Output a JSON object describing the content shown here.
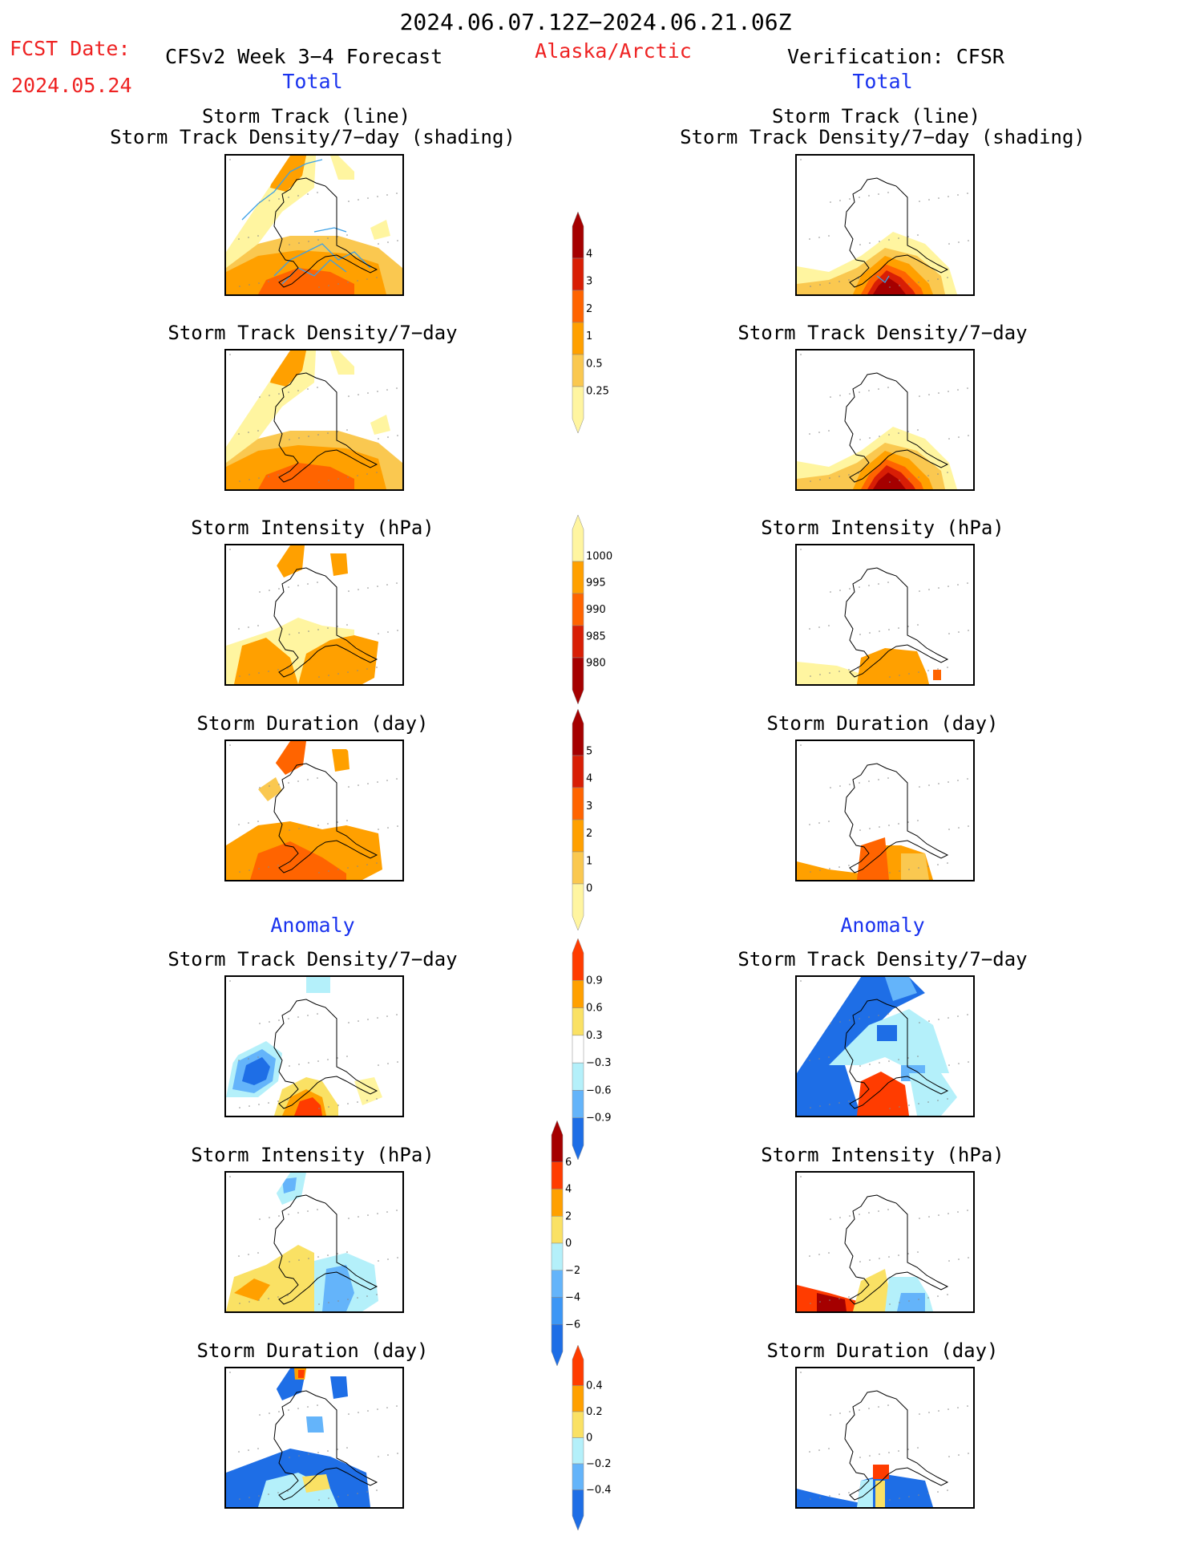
{
  "header": {
    "period": "2024.06.07.12Z−2024.06.21.06Z",
    "fcst_label": "FCST Date:",
    "fcst_date": "2024.05.24",
    "model": "CFSv2 Week 3−4 Forecast",
    "region": "Alaska/Arctic",
    "verification": "Verification: CFSR"
  },
  "sections": {
    "total": "Total",
    "anomaly": "Anomaly"
  },
  "panel_titles": {
    "track_line": "Storm Track (line)",
    "track_density_shading": "Storm Track Density/7−day (shading)",
    "track_density": "Storm Track Density/7−day",
    "intensity": "Storm Intensity (hPa)",
    "duration": "Storm Duration (day)"
  },
  "colorbars": {
    "density_total": {
      "labels": [
        "4",
        "3",
        "2",
        "1",
        "0.5",
        "0.25"
      ],
      "colors": [
        "#a50000",
        "#d81e05",
        "#ff6400",
        "#ffa000",
        "#fac850",
        "#fff5a0"
      ]
    },
    "intensity_total": {
      "labels": [
        "1000",
        "995",
        "990",
        "985",
        "980"
      ],
      "colors": [
        "#fff5a0",
        "#ffa000",
        "#ff6400",
        "#d81e05",
        "#a50000"
      ]
    },
    "duration_total": {
      "labels": [
        "5",
        "4",
        "3",
        "2",
        "1",
        "0"
      ],
      "colors": [
        "#a50000",
        "#d81e05",
        "#ff6400",
        "#ffa000",
        "#fac850",
        "#fff5a0"
      ]
    },
    "density_anom": {
      "labels": [
        "0.9",
        "0.6",
        "0.3",
        "−0.3",
        "−0.6",
        "−0.9"
      ],
      "colors": [
        "#ff3c00",
        "#ffa000",
        "#fae164",
        "#ffffff",
        "#b4f0fa",
        "#64b4fa",
        "#1e6ee6"
      ]
    },
    "intensity_anom": {
      "labels": [
        "6",
        "4",
        "2",
        "0",
        "−2",
        "−4",
        "−6"
      ],
      "colors": [
        "#a50000",
        "#ff3c00",
        "#ffa000",
        "#fae164",
        "#b4f0fa",
        "#64b4fa",
        "#3c96f5",
        "#1e6ee6"
      ]
    },
    "duration_anom": {
      "labels": [
        "0.4",
        "0.2",
        "0",
        "−0.2",
        "−0.4"
      ],
      "colors": [
        "#ff3c00",
        "#ffa000",
        "#fae164",
        "#b4f0fa",
        "#64b4fa",
        "#1e6ee6"
      ]
    }
  },
  "chart_data": [
    {
      "type": "heatmap",
      "title": "Storm Track (line) / Storm Track Density/7-day (shading)",
      "panel": "CFSv2 Total",
      "levels": [
        0.25,
        0.5,
        1,
        2,
        3,
        4
      ],
      "colors": [
        "#fff5a0",
        "#fac850",
        "#ffa000",
        "#ff6400",
        "#d81e05",
        "#a50000"
      ]
    },
    {
      "type": "heatmap",
      "title": "Storm Track (line) / Storm Track Density/7-day (shading)",
      "panel": "CFSR Total"
    },
    {
      "type": "heatmap",
      "title": "Storm Track Density/7-day",
      "panel": "CFSv2 Total"
    },
    {
      "type": "heatmap",
      "title": "Storm Track Density/7-day",
      "panel": "CFSR Total"
    },
    {
      "type": "heatmap",
      "title": "Storm Intensity (hPa)",
      "panel": "CFSv2 Total",
      "levels": [
        1000,
        995,
        990,
        985,
        980
      ]
    },
    {
      "type": "heatmap",
      "title": "Storm Intensity (hPa)",
      "panel": "CFSR Total"
    },
    {
      "type": "heatmap",
      "title": "Storm Duration (day)",
      "panel": "CFSv2 Total",
      "levels": [
        0,
        1,
        2,
        3,
        4,
        5
      ]
    },
    {
      "type": "heatmap",
      "title": "Storm Duration (day)",
      "panel": "CFSR Total"
    },
    {
      "type": "heatmap",
      "title": "Storm Track Density/7-day",
      "panel": "CFSv2 Anomaly",
      "levels": [
        -0.9,
        -0.6,
        -0.3,
        0.3,
        0.6,
        0.9
      ]
    },
    {
      "type": "heatmap",
      "title": "Storm Track Density/7-day",
      "panel": "CFSR Anomaly"
    },
    {
      "type": "heatmap",
      "title": "Storm Intensity (hPa)",
      "panel": "CFSv2 Anomaly",
      "levels": [
        -6,
        -4,
        -2,
        0,
        2,
        4,
        6
      ]
    },
    {
      "type": "heatmap",
      "title": "Storm Intensity (hPa)",
      "panel": "CFSR Anomaly"
    },
    {
      "type": "heatmap",
      "title": "Storm Duration (day)",
      "panel": "CFSv2 Anomaly",
      "levels": [
        -0.4,
        -0.2,
        0,
        0.2,
        0.4
      ]
    },
    {
      "type": "heatmap",
      "title": "Storm Duration (day)",
      "panel": "CFSR Anomaly"
    }
  ]
}
